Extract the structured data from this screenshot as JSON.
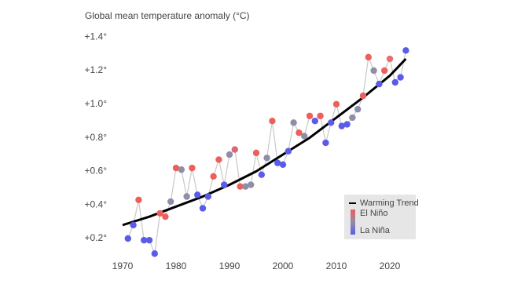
{
  "chart_data": {
    "type": "scatter",
    "title": "Global mean temperature anomaly (°C)",
    "x": [
      1971,
      1972,
      1973,
      1974,
      1975,
      1976,
      1977,
      1978,
      1979,
      1980,
      1981,
      1982,
      1983,
      1984,
      1985,
      1986,
      1987,
      1988,
      1989,
      1990,
      1991,
      1992,
      1993,
      1994,
      1995,
      1996,
      1997,
      1998,
      1999,
      2000,
      2001,
      2002,
      2003,
      2004,
      2005,
      2006,
      2007,
      2008,
      2009,
      2010,
      2011,
      2012,
      2013,
      2014,
      2015,
      2016,
      2017,
      2018,
      2019,
      2020,
      2021,
      2022,
      2023
    ],
    "values": [
      0.2,
      0.28,
      0.43,
      0.19,
      0.19,
      0.11,
      0.35,
      0.33,
      0.42,
      0.62,
      0.61,
      0.45,
      0.62,
      0.46,
      0.38,
      0.45,
      0.57,
      0.67,
      0.52,
      0.7,
      0.73,
      0.51,
      0.51,
      0.52,
      0.71,
      0.58,
      0.68,
      0.9,
      0.65,
      0.64,
      0.72,
      0.89,
      0.83,
      0.81,
      0.93,
      0.9,
      0.93,
      0.77,
      0.89,
      1.0,
      0.87,
      0.88,
      0.92,
      0.97,
      1.05,
      1.28,
      1.2,
      1.12,
      1.2,
      1.27,
      1.13,
      1.16,
      1.32
    ],
    "point_colors": [
      "#5b5bea",
      "#5b5bea",
      "#ee5f5b",
      "#5b5bea",
      "#5b5bea",
      "#5b5bea",
      "#ee5f5b",
      "#ee5f5b",
      "#8e8ea8",
      "#ee5f5b",
      "#8e8ea8",
      "#8e8ea8",
      "#ee5f5b",
      "#5b5bea",
      "#5b5bea",
      "#5b5bea",
      "#ee5f5b",
      "#ee5f5b",
      "#5b5bea",
      "#8e8ea8",
      "#d86a74",
      "#ee5f5b",
      "#8e8ea8",
      "#8e8ea8",
      "#ee5f5b",
      "#5b5bea",
      "#8e8ea8",
      "#ee5f5b",
      "#5b5bea",
      "#5b5bea",
      "#5b5bea",
      "#8e8ea8",
      "#ee5f5b",
      "#8e8ea8",
      "#ee5f5b",
      "#5b5bea",
      "#ee5f5b",
      "#5b5bea",
      "#5b5bea",
      "#ee5f5b",
      "#5b5bea",
      "#5b5bea",
      "#8e8ea8",
      "#8e8ea8",
      "#ee5f5b",
      "#ee5f5b",
      "#8e8ea8",
      "#5b5bea",
      "#ee5f5b",
      "#e86e72",
      "#5b5bea",
      "#5b5bea",
      "#5b5bea"
    ],
    "line_color": "#c8c8c8",
    "trend": {
      "name": "Warming Trend",
      "color": "#000000",
      "x": [
        1970,
        1975,
        1980,
        1985,
        1990,
        1995,
        2000,
        2005,
        2010,
        2015,
        2020,
        2023
      ],
      "values": [
        0.28,
        0.33,
        0.39,
        0.45,
        0.52,
        0.6,
        0.7,
        0.8,
        0.92,
        1.04,
        1.17,
        1.27
      ]
    },
    "legend": {
      "position": "lower right",
      "high_label": "El Niño",
      "low_label": "La Niña",
      "high_color": "#ee5f5b",
      "low_color": "#5b5bea"
    },
    "xlim": [
      1968,
      2026
    ],
    "ylim": [
      0.05,
      1.45
    ],
    "xticks": [
      1970,
      1980,
      1990,
      2000,
      2010,
      2020
    ],
    "yticks": [
      {
        "value": 0.2,
        "label": "+0.2°"
      },
      {
        "value": 0.4,
        "label": "+0.4°"
      },
      {
        "value": 0.6,
        "label": "+0.6°"
      },
      {
        "value": 0.8,
        "label": "+0.8°"
      },
      {
        "value": 1.0,
        "label": "+1.0°"
      },
      {
        "value": 1.2,
        "label": "+1.2°"
      },
      {
        "value": 1.4,
        "label": "+1.4°"
      }
    ]
  }
}
